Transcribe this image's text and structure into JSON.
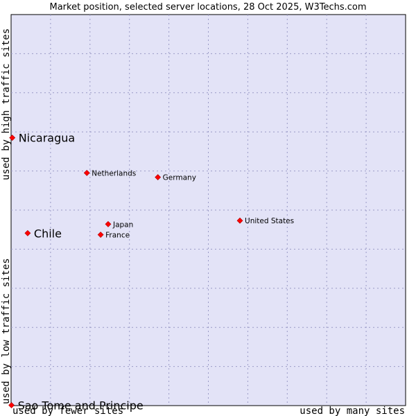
{
  "chart_data": {
    "type": "scatter",
    "title": "Market position, selected server locations, 28 Oct 2025, W3Techs.com",
    "xlabel_low": "used by fewer sites",
    "xlabel_high": "used by many sites",
    "ylabel_low": "used by low traffic sites",
    "ylabel_high": "used by high traffic sites",
    "xlim": [
      0,
      100
    ],
    "ylim": [
      0,
      100
    ],
    "grid": true,
    "colors": {
      "plot_bg": "#e3e3f7",
      "point": "#ff0000",
      "grid": "#9a9ac6"
    },
    "points": [
      {
        "name": "Nicaragua",
        "x": 0.3,
        "y": 68.5,
        "size": "large"
      },
      {
        "name": "Netherlands",
        "x": 19.2,
        "y": 59.5,
        "size": "small"
      },
      {
        "name": "Germany",
        "x": 37.2,
        "y": 58.4,
        "size": "small"
      },
      {
        "name": "United States",
        "x": 58.0,
        "y": 47.3,
        "size": "small"
      },
      {
        "name": "Japan",
        "x": 24.6,
        "y": 46.4,
        "size": "small"
      },
      {
        "name": "France",
        "x": 22.7,
        "y": 43.7,
        "size": "small"
      },
      {
        "name": "Chile",
        "x": 4.2,
        "y": 44.1,
        "size": "large"
      },
      {
        "name": "Sao Tome and Principe",
        "x": 0.1,
        "y": 0.1,
        "size": "large"
      }
    ]
  }
}
